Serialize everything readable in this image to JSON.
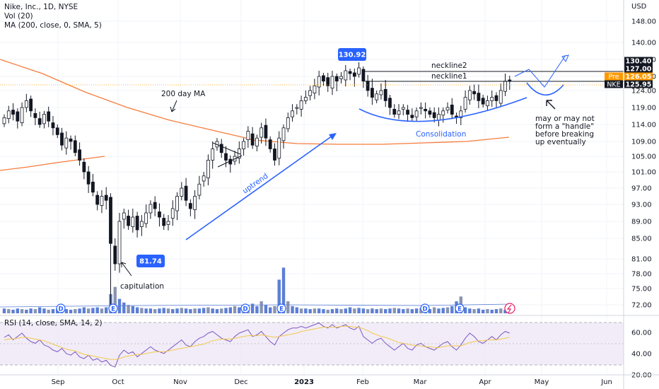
{
  "header": {
    "symbol_line": "Nike, Inc., 1D, NYSE",
    "vol_line": "Vol (20)",
    "ma_line": "MA (200, close, 0, SMA, 5)",
    "rsi_line": "RSI (14, close, SMA, 14, 2)"
  },
  "price_axis": {
    "currency": "USD",
    "ticks": [
      "148.00",
      "140.00",
      "133.00",
      "127.00",
      "124.00",
      "119.00",
      "114.00",
      "109.00",
      "105.00",
      "101.00",
      "97.00",
      "93.00",
      "89.00",
      "85.00",
      "81.00",
      "78.00",
      "75.00",
      "72.00"
    ]
  },
  "rsi_axis": {
    "ticks": [
      "60.00",
      "40.00",
      "20.00"
    ]
  },
  "time_axis": {
    "ticks": [
      "Sep",
      "Oct",
      "Nov",
      "Dec",
      "2023",
      "Feb",
      "Mar",
      "Apr",
      "May",
      "Jun"
    ]
  },
  "price_badges": [
    {
      "label": "",
      "value": "130.40",
      "bg": "#131722",
      "fg": "#ffffff"
    },
    {
      "label": "",
      "value": "127.00",
      "bg": "#131722",
      "fg": "#ffffff"
    },
    {
      "label": "Pre",
      "value": "126.05",
      "bg": "#ff9800",
      "fg": "#ffffff"
    },
    {
      "label": "NKE",
      "value": "125.95",
      "bg": "#131722",
      "fg": "#ffffff"
    }
  ],
  "price_labels": [
    {
      "value": "130.92"
    },
    {
      "value": "81.74"
    }
  ],
  "annotations": {
    "ma200": "200 day MA",
    "capitulation": "capitulation",
    "uptrend": "uptrend",
    "consolidation": "Consolidation",
    "neckline1": "neckline1",
    "neckline2": "neckline2",
    "handle_lines": [
      "may or may not",
      "form a \"handle\"",
      "before breaking",
      "up eventually"
    ]
  },
  "event_markers": {
    "dividend": "D",
    "earnings": "E"
  },
  "colors": {
    "up": "#131722",
    "down": "#131722",
    "ma200": "#f57c3b",
    "trend_line": "#2962ff",
    "volume": "#5b7fd6",
    "rsi_line": "#7e57c2",
    "rsi_ma": "#f2c94c",
    "rsi_bg": "#ede7f6"
  },
  "chart_data": {
    "type": "candlestick",
    "price_range": [
      70,
      150
    ],
    "key_levels": {
      "neckline1": 127.0,
      "neckline2": 130.4,
      "pre_market": 126.05,
      "last": 125.95
    },
    "marked_high": 130.92,
    "marked_low": 81.74,
    "ma200_approx": [
      [
        0,
        131
      ],
      [
        60,
        125
      ],
      [
        120,
        119
      ],
      [
        180,
        113
      ],
      [
        240,
        108.5
      ],
      [
        300,
        107.5
      ],
      [
        340,
        108
      ],
      [
        360,
        110
      ]
    ],
    "closes": [
      116,
      118,
      117,
      115,
      119,
      121,
      118,
      116,
      114,
      117,
      115,
      113,
      111,
      108,
      110,
      109,
      106,
      104,
      101,
      98,
      96,
      93,
      95,
      94,
      84,
      80,
      89,
      91,
      88,
      90,
      87,
      89,
      91,
      93,
      92,
      90,
      88,
      89,
      92,
      95,
      97,
      94,
      92,
      95,
      98,
      100,
      104,
      107,
      109,
      106,
      104,
      103,
      105,
      107,
      109,
      112,
      108,
      110,
      113,
      110,
      107,
      104,
      110,
      113,
      116,
      118,
      119,
      121,
      122,
      124,
      125,
      127,
      126,
      125,
      127,
      126,
      127,
      129,
      128,
      127,
      130,
      126,
      124,
      122,
      123,
      124,
      121,
      119,
      117,
      118,
      119,
      117,
      116,
      118,
      119,
      118,
      117,
      116,
      117,
      118,
      119,
      117,
      116,
      118,
      122,
      124,
      123,
      121,
      120,
      121,
      122,
      121,
      124,
      126,
      125.95
    ],
    "volume_relative": [
      0.4,
      0.35,
      0.3,
      0.4,
      0.35,
      0.3,
      0.4,
      0.35,
      0.5,
      0.4,
      0.3,
      0.35,
      0.4,
      0.45,
      0.35,
      0.3,
      0.35,
      0.4,
      0.5,
      0.4,
      0.45,
      0.5,
      0.4,
      0.5,
      1.6,
      2.2,
      1.2,
      0.9,
      0.7,
      0.6,
      0.5,
      0.45,
      0.4,
      0.4,
      0.35,
      0.4,
      0.45,
      0.4,
      0.35,
      0.4,
      0.45,
      0.4,
      0.35,
      0.4,
      0.4,
      0.45,
      0.5,
      0.4,
      0.35,
      0.4,
      0.45,
      0.5,
      0.6,
      0.5,
      0.4,
      0.5,
      0.8,
      0.6,
      1.0,
      0.7,
      0.5,
      0.6,
      2.8,
      3.8,
      1.0,
      0.6,
      0.5,
      0.4,
      0.4,
      0.35,
      0.4,
      0.4,
      0.35,
      0.3,
      0.35,
      0.4,
      0.35,
      0.4,
      0.5,
      0.4,
      0.45,
      0.4,
      0.35,
      0.4,
      0.35,
      0.4,
      0.35,
      0.4,
      0.45,
      0.4,
      0.35,
      0.4,
      0.35,
      0.4,
      0.45,
      0.4,
      0.35,
      0.5,
      0.4,
      0.45,
      0.5,
      0.6,
      1.0,
      1.4,
      0.5,
      0.4,
      0.35,
      0.4,
      0.3,
      0.35,
      0.3,
      0.35,
      0.4,
      0.3,
      0.25
    ],
    "rsi": [
      55,
      58,
      52,
      56,
      60,
      54,
      50,
      48,
      52,
      46,
      44,
      40,
      38,
      42,
      36,
      34,
      38,
      32,
      30,
      34,
      28,
      30,
      26,
      28,
      22,
      20,
      34,
      40,
      36,
      38,
      32,
      36,
      40,
      44,
      40,
      38,
      36,
      40,
      44,
      48,
      52,
      46,
      44,
      50,
      54,
      56,
      60,
      62,
      58,
      54,
      52,
      50,
      56,
      60,
      62,
      64,
      56,
      58,
      62,
      56,
      50,
      46,
      56,
      60,
      64,
      66,
      66,
      68,
      66,
      68,
      70,
      72,
      68,
      66,
      70,
      66,
      68,
      70,
      66,
      64,
      68,
      56,
      52,
      48,
      52,
      54,
      48,
      44,
      40,
      44,
      48,
      42,
      40,
      46,
      48,
      44,
      42,
      40,
      44,
      48,
      50,
      44,
      40,
      46,
      54,
      60,
      56,
      50,
      48,
      52,
      56,
      52,
      58,
      62,
      60
    ],
    "rsi_ma": [
      52,
      53,
      53,
      54,
      55,
      55,
      54,
      53,
      52,
      51,
      49,
      47,
      45,
      43,
      41,
      40,
      39,
      37,
      35,
      34,
      33,
      32,
      31,
      30,
      29,
      29,
      30,
      32,
      33,
      34,
      35,
      35,
      36,
      37,
      38,
      38,
      38,
      39,
      40,
      41,
      42,
      43,
      44,
      45,
      46,
      47,
      49,
      51,
      52,
      53,
      53,
      53,
      54,
      55,
      56,
      57,
      57,
      57,
      58,
      57,
      56,
      55,
      56,
      57,
      58,
      59,
      60,
      62,
      63,
      64,
      65,
      66,
      67,
      67,
      67,
      67,
      68,
      68,
      68,
      67,
      67,
      65,
      63,
      60,
      58,
      56,
      55,
      53,
      51,
      49,
      48,
      47,
      46,
      45,
      45,
      44,
      44,
      43,
      43,
      44,
      45,
      45,
      45,
      45,
      47,
      49,
      50,
      51,
      51,
      52,
      52,
      52,
      53,
      54,
      55
    ]
  }
}
